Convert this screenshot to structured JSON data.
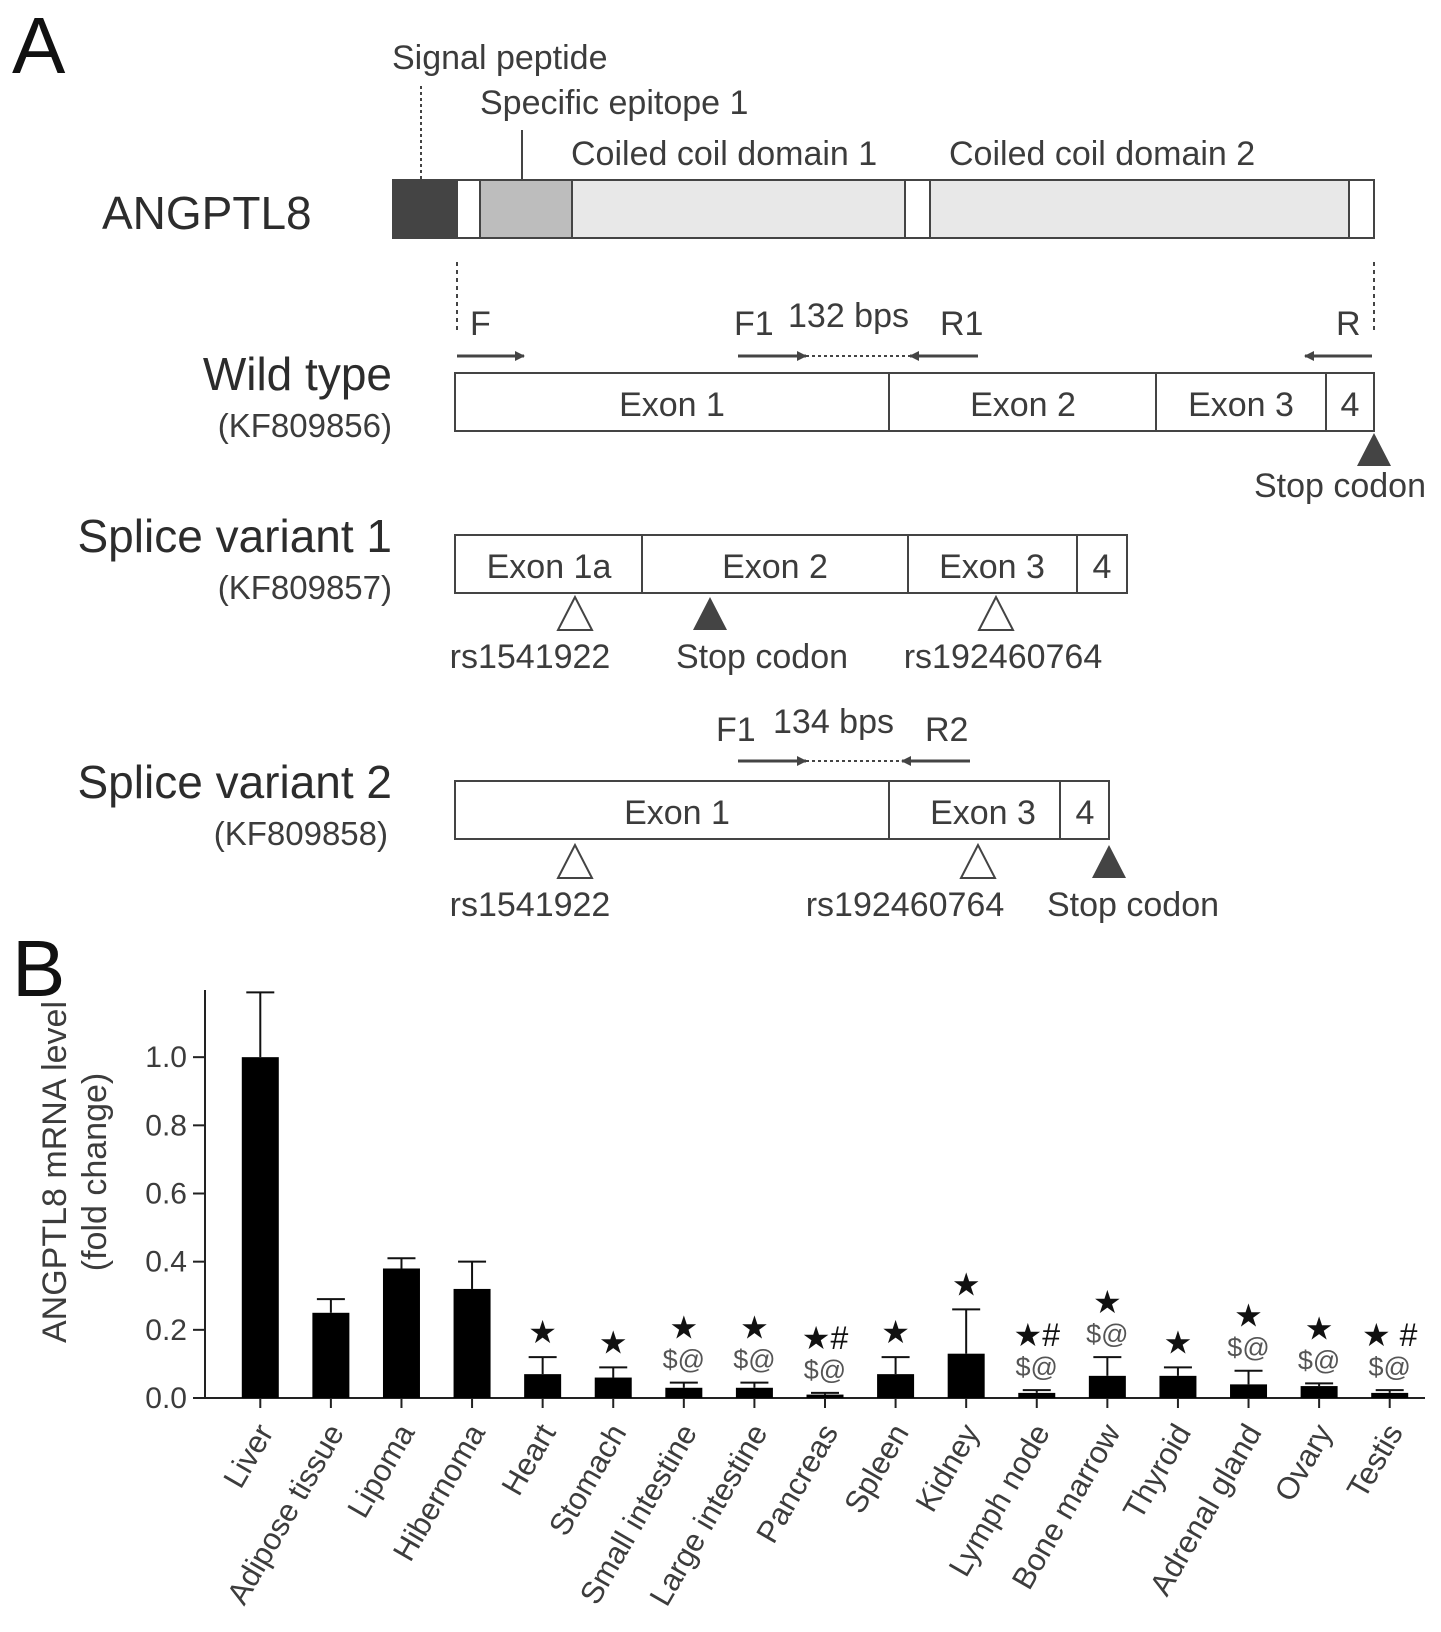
{
  "panel_a": {
    "letter": "A",
    "protein": {
      "name": "ANGPTL8",
      "labels": {
        "signal_peptide": "Signal peptide",
        "specific_epitope": "Specific epitope 1",
        "coil1": "Coiled coil domain 1",
        "coil2": "Coiled coil domain 2"
      },
      "colors": {
        "signal": "#444444",
        "epitope": "#bdbdbd",
        "coil": "#e8e8e8",
        "linker": "#ffffff"
      }
    },
    "wild_type": {
      "name": "Wild type",
      "accession": "(KF809856)",
      "primers": {
        "F": "F",
        "F1": "F1",
        "R1": "R1",
        "R": "R",
        "amplicon": "132 bps"
      },
      "exons": [
        "Exon 1",
        "Exon 2",
        "Exon 3",
        "4"
      ],
      "stop": "Stop codon"
    },
    "variant1": {
      "name": "Splice variant 1",
      "accession": "(KF809857)",
      "exons": [
        "Exon 1a",
        "Exon 2",
        "Exon 3",
        "4"
      ],
      "markers": [
        "rs1541922",
        "Stop codon",
        "rs192460764"
      ]
    },
    "variant2": {
      "name": "Splice variant 2",
      "accession": "(KF809858)",
      "primers": {
        "F1": "F1",
        "R2": "R2",
        "amplicon": "134 bps"
      },
      "exons": [
        "Exon 1",
        "Exon 3",
        "4"
      ],
      "markers": [
        "rs1541922",
        "rs192460764",
        "Stop codon"
      ]
    }
  },
  "panel_b": {
    "letter": "B"
  },
  "chart_data": {
    "type": "bar",
    "ylabel": "ANGPTL8 mRNA level",
    "ylabel2": "(fold change)",
    "ylim": [
      0,
      1.2
    ],
    "yticks": [
      "0.0",
      "0.2",
      "0.4",
      "0.6",
      "0.8",
      "1.0"
    ],
    "bar_color": "#000000",
    "categories": [
      "Liver",
      "Adipose tissue",
      "Lipoma",
      "Hibernoma",
      "Heart",
      "Stomach",
      "Small intestine",
      "Large intestine",
      "Pancreas",
      "Spleen",
      "Kidney",
      "Lymph node",
      "Bone marrow",
      "Thyroid",
      "Adrenal gland",
      "Ovary",
      "Testis"
    ],
    "values": [
      1.0,
      0.25,
      0.38,
      0.32,
      0.07,
      0.06,
      0.03,
      0.03,
      0.01,
      0.07,
      0.13,
      0.015,
      0.065,
      0.065,
      0.04,
      0.035,
      0.015
    ],
    "errors": [
      0.19,
      0.04,
      0.03,
      0.08,
      0.05,
      0.03,
      0.015,
      0.015,
      0.005,
      0.05,
      0.13,
      0.008,
      0.055,
      0.025,
      0.04,
      0.008,
      0.008
    ],
    "significance": [
      [],
      [],
      [],
      [],
      [
        "★"
      ],
      [
        "★"
      ],
      [
        "★",
        "$@"
      ],
      [
        "★",
        "$@"
      ],
      [
        "★#",
        "$@"
      ],
      [
        "★"
      ],
      [
        "★"
      ],
      [
        "★#",
        "$@"
      ],
      [
        "★",
        "$@"
      ],
      [
        "★"
      ],
      [
        "★",
        "$@"
      ],
      [
        "★",
        "$@"
      ],
      [
        "★ #",
        "$@"
      ]
    ]
  }
}
